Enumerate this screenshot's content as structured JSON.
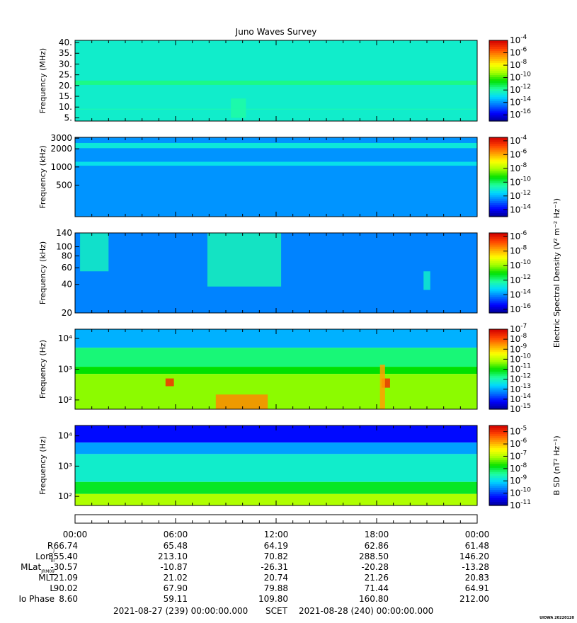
{
  "title": "Juno Waves Survey",
  "footer_tag": "UIOWA 20220120",
  "colors": {
    "colormap": [
      "#00008f",
      "#0000ff",
      "#0070ff",
      "#00d8ff",
      "#20ff9f",
      "#00e000",
      "#a0ff00",
      "#ffff00",
      "#ffa000",
      "#ff4000",
      "#d00000"
    ]
  },
  "chart_data": [
    {
      "type": "heatmap",
      "title": "Juno Waves Survey",
      "ylabel": "Frequency (MHz)",
      "yscale": "linear",
      "ylim": [
        3.5,
        41
      ],
      "y_ticks": [
        "5.",
        "10.",
        "15.",
        "20.",
        "25.",
        "30.",
        "35.",
        "40."
      ],
      "y_tick_values": [
        5,
        10,
        15,
        20,
        25,
        30,
        35,
        40
      ],
      "colorbar_ticks": [
        "-4",
        "-6",
        "-8",
        "-10",
        "-12",
        "-14",
        "-16"
      ],
      "colorbar_range": [
        -17,
        -4
      ],
      "colorbar_label": "",
      "background_log10": -12.4,
      "bands": [
        {
          "from": 20.3,
          "to": 22.3,
          "log10": -11.6
        },
        {
          "from": 8.9,
          "to": 9.2,
          "log10": -12.0
        }
      ],
      "features": [
        {
          "x_hours": [
            9.3,
            10.2
          ],
          "y": [
            5,
            14
          ],
          "log10": -11.9
        }
      ]
    },
    {
      "type": "heatmap",
      "ylabel": "Frequency (kHz)",
      "yscale": "log",
      "ylim": [
        150,
        3100
      ],
      "y_ticks": [
        "500",
        "1000",
        "2000",
        "3000"
      ],
      "y_tick_values": [
        500,
        1000,
        2000,
        3000
      ],
      "colorbar_ticks": [
        "-4",
        "-6",
        "-8",
        "-10",
        "-12",
        "-14"
      ],
      "colorbar_range": [
        -15,
        -3.5
      ],
      "colorbar_label": "",
      "background_log10": -12.3,
      "bands": [
        {
          "from": 2050,
          "to": 2500,
          "log10": -11.1
        },
        {
          "from": 1050,
          "to": 1220,
          "log10": -11.3
        }
      ],
      "features": []
    },
    {
      "type": "heatmap",
      "ylabel": "Frequency (kHz)",
      "yscale": "log",
      "ylim": [
        20,
        140
      ],
      "y_ticks": [
        "20",
        "40",
        "60",
        "80",
        "100",
        "140"
      ],
      "y_tick_values": [
        20,
        40,
        60,
        80,
        100,
        140
      ],
      "colorbar_ticks": [
        "-6",
        "-8",
        "-10",
        "-12",
        "-14",
        "-16"
      ],
      "colorbar_range": [
        -16.5,
        -5.5
      ],
      "colorbar_label": "Electric Spectral Density (V² m⁻² Hz⁻¹)",
      "background_log10": -14.1,
      "bands": [],
      "features": [
        {
          "x_hours": [
            0.3,
            2.0
          ],
          "y": [
            55,
            140
          ],
          "log10": -12.5
        },
        {
          "x_hours": [
            7.9,
            12.3
          ],
          "y": [
            38,
            140
          ],
          "log10": -12.4
        },
        {
          "x_hours": [
            20.8,
            21.2
          ],
          "y": [
            35,
            55
          ],
          "log10": -12.6
        }
      ]
    },
    {
      "type": "heatmap",
      "ylabel": "Frequency (Hz)",
      "yscale": "log",
      "ylim": [
        50,
        20000
      ],
      "y_ticks": [
        "10²",
        "10³",
        "10⁴"
      ],
      "y_tick_values": [
        100,
        1000,
        10000
      ],
      "colorbar_ticks": [
        "-7",
        "-8",
        "-9",
        "-10",
        "-11",
        "-12",
        "-13",
        "-14",
        "-15"
      ],
      "colorbar_range": [
        -15,
        -7
      ],
      "colorbar_label": "",
      "layers": [
        {
          "from": 5000,
          "to": 20000,
          "log10": -12.9
        },
        {
          "from": 1200,
          "to": 5000,
          "log10": -11.6
        },
        {
          "from": 700,
          "to": 1200,
          "log10": -11.0
        },
        {
          "from": 50,
          "to": 700,
          "log10": -10.3
        }
      ],
      "features": [
        {
          "x_hours": [
            5.4,
            5.9
          ],
          "y": [
            280,
            500
          ],
          "log10": -7.6
        },
        {
          "x_hours": [
            18.3,
            18.8
          ],
          "y": [
            250,
            500
          ],
          "log10": -7.6
        },
        {
          "x_hours": [
            8.4,
            11.5
          ],
          "y": [
            50,
            150
          ],
          "log10": -8.4
        },
        {
          "x_hours": [
            18.2,
            18.5
          ],
          "y": [
            50,
            1400
          ],
          "log10": -8.6
        }
      ]
    },
    {
      "type": "heatmap",
      "ylabel": "Frequency (Hz)",
      "yscale": "log",
      "ylim": [
        50,
        22000
      ],
      "y_ticks": [
        "10²",
        "10³",
        "10⁴"
      ],
      "y_tick_values": [
        100,
        1000,
        10000
      ],
      "colorbar_ticks": [
        "-5",
        "-6",
        "-7",
        "-8",
        "-9",
        "-10",
        "-11"
      ],
      "colorbar_range": [
        -11,
        -4.5
      ],
      "colorbar_label": "B SD (nT² Hz⁻¹)",
      "layers": [
        {
          "from": 6000,
          "to": 22000,
          "log10": -10.3
        },
        {
          "from": 2500,
          "to": 6000,
          "log10": -9.4
        },
        {
          "from": 300,
          "to": 2500,
          "log10": -8.7
        },
        {
          "from": 120,
          "to": 300,
          "log10": -7.9
        },
        {
          "from": 50,
          "to": 120,
          "log10": -7.0
        }
      ],
      "features": []
    }
  ],
  "ephemeris": {
    "labels": [
      "R",
      "Lon",
      "MLat",
      "MLT",
      "L",
      "Io Phase"
    ],
    "label_subscripts": [
      "J",
      "III",
      "JRM09",
      "",
      "",
      ""
    ],
    "times": [
      "00:00",
      "06:00",
      "12:00",
      "18:00",
      "00:00"
    ],
    "rows": [
      [
        "66.74",
        "65.48",
        "64.19",
        "62.86",
        "61.48"
      ],
      [
        "355.40",
        "213.10",
        "70.82",
        "288.50",
        "146.20"
      ],
      [
        "-30.57",
        "-10.87",
        "-26.31",
        "-20.28",
        "-13.28"
      ],
      [
        "21.09",
        "21.02",
        "20.74",
        "21.26",
        "20.83"
      ],
      [
        "90.02",
        "67.90",
        "79.88",
        "71.44",
        "64.91"
      ],
      [
        "8.60",
        "59.11",
        "109.80",
        "160.80",
        "212.00"
      ]
    ],
    "start": "2021-08-27 (239) 00:00:00.000",
    "scet_label": "SCET",
    "end": "2021-08-28 (240) 00:00:00.000"
  }
}
